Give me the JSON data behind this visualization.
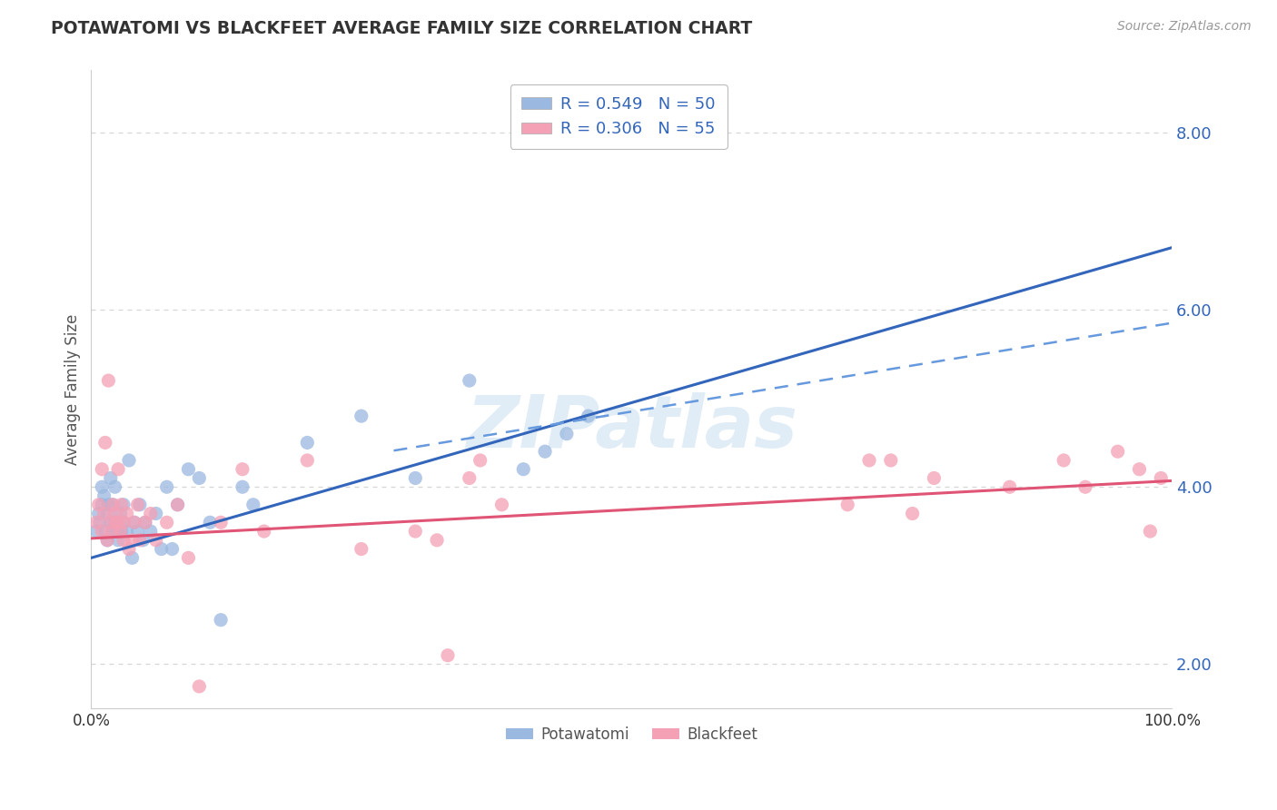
{
  "title": "POTAWATOMI VS BLACKFEET AVERAGE FAMILY SIZE CORRELATION CHART",
  "source_text": "Source: ZipAtlas.com",
  "ylabel": "Average Family Size",
  "x_min": 0.0,
  "x_max": 1.0,
  "y_min": 1.5,
  "y_max": 8.7,
  "yticks": [
    2.0,
    4.0,
    6.0,
    8.0
  ],
  "ytick_labels": [
    "2.00",
    "4.00",
    "6.00",
    "8.00"
  ],
  "legend_r1": "R = 0.549",
  "legend_n1": "N = 50",
  "legend_r2": "R = 0.306",
  "legend_n2": "N = 55",
  "color_potawatomi": "#9ab8e0",
  "color_blackfeet": "#f4a0b5",
  "color_blue_line": "#3366bb",
  "color_pink_line": "#e05575",
  "color_dashed_line": "#6699dd",
  "color_axis_blue": "#3366bb",
  "color_grid": "#cccccc",
  "potawatomi_x": [
    0.005,
    0.007,
    0.008,
    0.01,
    0.01,
    0.012,
    0.013,
    0.015,
    0.015,
    0.016,
    0.018,
    0.018,
    0.02,
    0.02,
    0.022,
    0.022,
    0.025,
    0.025,
    0.027,
    0.028,
    0.03,
    0.03,
    0.033,
    0.035,
    0.038,
    0.04,
    0.043,
    0.045,
    0.048,
    0.05,
    0.055,
    0.06,
    0.065,
    0.07,
    0.075,
    0.08,
    0.09,
    0.1,
    0.11,
    0.12,
    0.14,
    0.15,
    0.2,
    0.25,
    0.3,
    0.35,
    0.4,
    0.42,
    0.44,
    0.46
  ],
  "potawatomi_y": [
    3.5,
    3.7,
    3.6,
    3.8,
    4.0,
    3.9,
    3.5,
    3.4,
    3.7,
    3.8,
    3.6,
    4.1,
    3.5,
    3.8,
    3.6,
    4.0,
    3.5,
    3.4,
    3.7,
    3.5,
    3.6,
    3.8,
    3.5,
    4.3,
    3.2,
    3.6,
    3.5,
    3.8,
    3.4,
    3.6,
    3.5,
    3.7,
    3.3,
    4.0,
    3.3,
    3.8,
    4.2,
    4.1,
    3.6,
    2.5,
    4.0,
    3.8,
    4.5,
    4.8,
    4.1,
    5.2,
    4.2,
    4.4,
    4.6,
    4.8
  ],
  "blackfeet_x": [
    0.005,
    0.007,
    0.01,
    0.01,
    0.012,
    0.013,
    0.015,
    0.016,
    0.018,
    0.02,
    0.02,
    0.022,
    0.023,
    0.025,
    0.025,
    0.027,
    0.028,
    0.03,
    0.03,
    0.033,
    0.035,
    0.038,
    0.04,
    0.043,
    0.045,
    0.05,
    0.055,
    0.06,
    0.07,
    0.08,
    0.09,
    0.1,
    0.12,
    0.14,
    0.16,
    0.2,
    0.25,
    0.3,
    0.32,
    0.33,
    0.35,
    0.36,
    0.38,
    0.7,
    0.72,
    0.74,
    0.76,
    0.78,
    0.85,
    0.9,
    0.92,
    0.95,
    0.97,
    0.98,
    0.99
  ],
  "blackfeet_y": [
    3.6,
    3.8,
    3.5,
    4.2,
    3.7,
    4.5,
    3.4,
    5.2,
    3.6,
    3.8,
    3.5,
    3.7,
    3.6,
    4.2,
    3.6,
    3.5,
    3.8,
    3.6,
    3.4,
    3.7,
    3.3,
    3.4,
    3.6,
    3.8,
    3.4,
    3.6,
    3.7,
    3.4,
    3.6,
    3.8,
    3.2,
    1.75,
    3.6,
    4.2,
    3.5,
    4.3,
    3.3,
    3.5,
    3.4,
    2.1,
    4.1,
    4.3,
    3.8,
    3.8,
    4.3,
    4.3,
    3.7,
    4.1,
    4.0,
    4.3,
    4.0,
    4.4,
    4.2,
    3.5,
    4.1
  ]
}
